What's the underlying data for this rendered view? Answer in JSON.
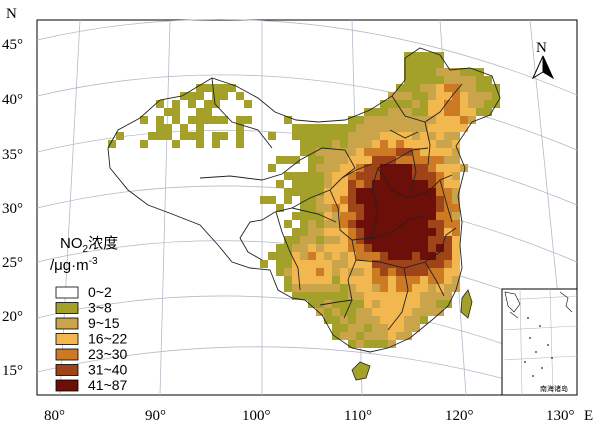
{
  "map": {
    "axis_x_title": "E",
    "axis_y_title": "N",
    "lon_ticks": [
      "80°",
      "90°",
      "100°",
      "110°",
      "120°",
      "130°"
    ],
    "lat_ticks": [
      "45°",
      "40°",
      "35°",
      "30°",
      "25°",
      "20°",
      "15°"
    ],
    "north_label": "N",
    "legend": {
      "title_main": "NO",
      "title_sub": "2",
      "title_tail": "浓度",
      "unit_pre": "/μg·m",
      "unit_sup": "-3",
      "classes": [
        {
          "label": "0~2",
          "color": "#ffffff"
        },
        {
          "label": "3~8",
          "color": "#a3a12a"
        },
        {
          "label": "9~15",
          "color": "#c9a44a"
        },
        {
          "label": "16~22",
          "color": "#f2b84f"
        },
        {
          "label": "23~30",
          "color": "#cd7a25"
        },
        {
          "label": "31~40",
          "color": "#9e4418"
        },
        {
          "label": "41~87",
          "color": "#6b0f08"
        }
      ]
    },
    "inset_label": "南海诸岛"
  }
}
